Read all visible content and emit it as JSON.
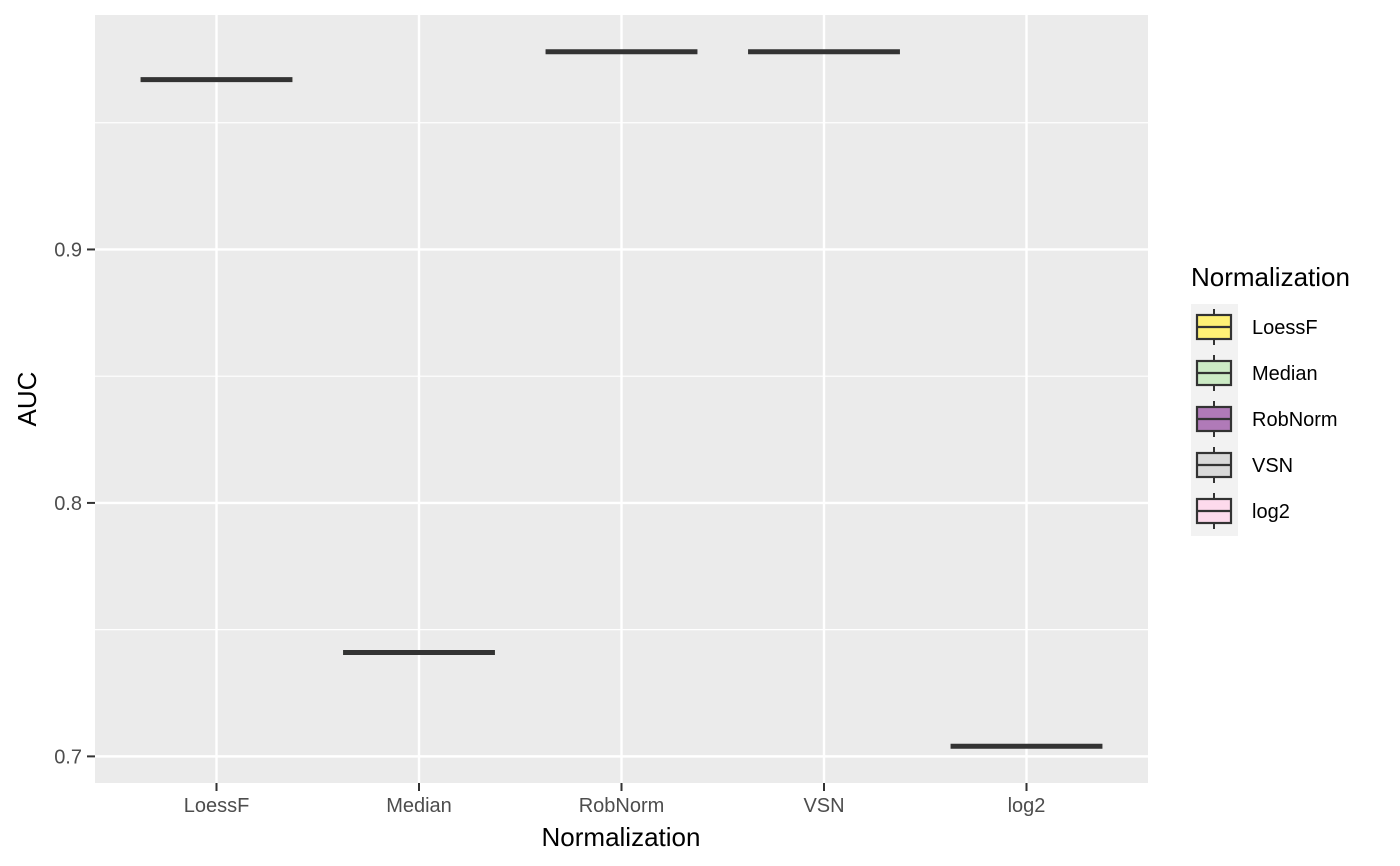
{
  "chart_data": {
    "type": "boxplot",
    "title": "",
    "xlabel": "Normalization",
    "ylabel": "AUC",
    "categories": [
      "LoessF",
      "Median",
      "RobNorm",
      "VSN",
      "log2"
    ],
    "values": [
      0.967,
      0.741,
      0.978,
      0.978,
      0.704
    ],
    "ylim": [
      0.6895,
      0.9925
    ],
    "y_ticks": [
      0.7,
      0.8,
      0.9
    ],
    "y_tick_labels": [
      "0.7",
      "0.8",
      "0.9"
    ],
    "grid": true,
    "legend": {
      "title": "Normalization",
      "placement": "right",
      "entries": [
        "LoessF",
        "Median",
        "RobNorm",
        "VSN",
        "log2"
      ]
    },
    "colors": {
      "LoessF": "#FFF176",
      "Median": "#CCEBC5",
      "RobNorm": "#B07AB8",
      "VSN": "#D9D9D9",
      "log2": "#FDDAEC",
      "panel_background": "#EBEBEB",
      "gridline": "#FFFFFF",
      "median_line": "#333333"
    }
  }
}
